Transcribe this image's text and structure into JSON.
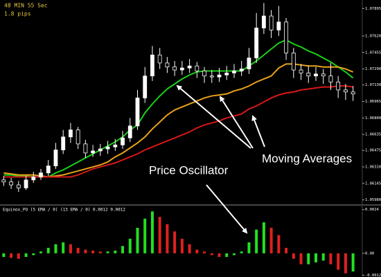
{
  "chart_data": [
    {
      "type": "candlestick",
      "info": [
        "48 MIN 55 Sec",
        "1.8 pips"
      ],
      "annotations": [
        "Price Oscillator",
        "Moving Averages"
      ],
      "ylim": [
        1.0595,
        1.0798
      ],
      "yticks": [
        1.07895,
        {
          "value": 1.0762,
          "label": "1.07620"
        },
        1.07455,
        {
          "value": 1.0729,
          "label": "1.07290"
        },
        {
          "value": 1.0713,
          "label": "1.07130"
        },
        1.06965,
        {
          "value": 1.068,
          "label": "1.06800"
        },
        1.06635,
        1.06475,
        {
          "value": 1.0631,
          "label": "1.06310"
        },
        1.06145,
        {
          "value": 1.0598,
          "label": "1.05980"
        }
      ],
      "up_color": "#ffffff",
      "down_color": "#000000",
      "outline": "#ffffff",
      "candles": [
        [
          1.0618,
          1.0622,
          1.0612,
          1.0616
        ],
        [
          1.0616,
          1.062,
          1.0609,
          1.0613
        ],
        [
          1.0613,
          1.0617,
          1.0606,
          1.061
        ],
        [
          1.061,
          1.0622,
          1.0608,
          1.0618
        ],
        [
          1.0618,
          1.0626,
          1.0615,
          1.0621
        ],
        [
          1.0621,
          1.0629,
          1.0618,
          1.0625
        ],
        [
          1.0625,
          1.0638,
          1.0622,
          1.0632
        ],
        [
          1.0632,
          1.0655,
          1.0629,
          1.0648
        ],
        [
          1.0648,
          1.0668,
          1.0644,
          1.0661
        ],
        [
          1.0661,
          1.0675,
          1.0655,
          1.0668
        ],
        [
          1.0668,
          1.0671,
          1.0649,
          1.0654
        ],
        [
          1.0654,
          1.0658,
          1.064,
          1.0645
        ],
        [
          1.0645,
          1.0653,
          1.0641,
          1.0647
        ],
        [
          1.0647,
          1.0654,
          1.0642,
          1.0649
        ],
        [
          1.0649,
          1.0657,
          1.0644,
          1.0651
        ],
        [
          1.0651,
          1.0659,
          1.0647,
          1.0653
        ],
        [
          1.0653,
          1.0667,
          1.0649,
          1.066
        ],
        [
          1.066,
          1.068,
          1.0656,
          1.0672
        ],
        [
          1.0672,
          1.0708,
          1.0668,
          1.07
        ],
        [
          1.07,
          1.0731,
          1.0695,
          1.0722
        ],
        [
          1.0722,
          1.0752,
          1.0717,
          1.0743
        ],
        [
          1.0743,
          1.075,
          1.0729,
          1.0735
        ],
        [
          1.0735,
          1.0741,
          1.0725,
          1.0731
        ],
        [
          1.0731,
          1.0737,
          1.0722,
          1.0728
        ],
        [
          1.0728,
          1.0737,
          1.0723,
          1.073
        ],
        [
          1.073,
          1.0739,
          1.0725,
          1.0732
        ],
        [
          1.0732,
          1.0736,
          1.072,
          1.0727
        ],
        [
          1.0727,
          1.0731,
          1.0715,
          1.0722
        ],
        [
          1.0722,
          1.0728,
          1.0715,
          1.0721
        ],
        [
          1.0721,
          1.073,
          1.0716,
          1.0723
        ],
        [
          1.0723,
          1.0732,
          1.0718,
          1.0725
        ],
        [
          1.0725,
          1.0734,
          1.072,
          1.0727
        ],
        [
          1.0727,
          1.0737,
          1.0722,
          1.0729
        ],
        [
          1.0729,
          1.075,
          1.0724,
          1.074
        ],
        [
          1.074,
          1.0785,
          1.0735,
          1.077
        ],
        [
          1.077,
          1.0795,
          1.0764,
          1.0782
        ],
        [
          1.0782,
          1.0788,
          1.076,
          1.0768
        ],
        [
          1.0768,
          1.0792,
          1.0762,
          1.0776
        ],
        [
          1.0776,
          1.078,
          1.0738,
          1.0745
        ],
        [
          1.0745,
          1.075,
          1.072,
          1.0728
        ],
        [
          1.0728,
          1.0734,
          1.0718,
          1.0725
        ],
        [
          1.0725,
          1.0732,
          1.0715,
          1.0722
        ],
        [
          1.0722,
          1.0731,
          1.0717,
          1.0724
        ],
        [
          1.0724,
          1.0729,
          1.0714,
          1.0722
        ],
        [
          1.0722,
          1.0735,
          1.0708,
          1.0716
        ],
        [
          1.0716,
          1.0722,
          1.07,
          1.0708
        ],
        [
          1.0708,
          1.0714,
          1.0698,
          1.0706
        ],
        [
          1.0706,
          1.0712,
          1.0697,
          1.0704
        ]
      ],
      "series": [
        {
          "color": "#19d119",
          "values": [
            1.0623,
            1.0623,
            1.0622,
            1.0622,
            1.0621,
            1.0621,
            1.0621,
            1.0625,
            1.0628,
            1.0632,
            1.0636,
            1.064,
            1.0644,
            1.0648,
            1.0652,
            1.0656,
            1.0661,
            1.0668,
            1.0673,
            1.0685,
            1.0694,
            1.0702,
            1.0709,
            1.0714,
            1.0719,
            1.0723,
            1.0726,
            1.0727,
            1.0727,
            1.0727,
            1.0727,
            1.0727,
            1.0727,
            1.0732,
            1.0737,
            1.0743,
            1.0749,
            1.0755,
            1.0758,
            1.0754,
            1.0751,
            1.0747,
            1.0744,
            1.074,
            1.0736,
            1.0731,
            1.0726,
            1.072
          ]
        },
        {
          "color": "#e8a21a",
          "values": [
            1.0625,
            1.0624,
            1.0623,
            1.0623,
            1.0623,
            1.0622,
            1.0621,
            1.0622,
            1.0623,
            1.0625,
            1.0627,
            1.0629,
            1.0631,
            1.0633,
            1.0636,
            1.0641,
            1.0645,
            1.065,
            1.0655,
            1.0661,
            1.0669,
            1.0676,
            1.0683,
            1.0688,
            1.0691,
            1.0694,
            1.0697,
            1.07,
            1.0702,
            1.0703,
            1.0704,
            1.0707,
            1.0709,
            1.0712,
            1.0716,
            1.0719,
            1.0722,
            1.073,
            1.0734,
            1.0734,
            1.0733,
            1.0732,
            1.0732,
            1.0731,
            1.0731,
            1.0731,
            1.0729,
            1.0726
          ]
        },
        {
          "color": "#d81818",
          "values": [
            1.0621,
            1.0621,
            1.0621,
            1.0621,
            1.0621,
            1.0621,
            1.0621,
            1.0621,
            1.0621,
            1.0621,
            1.0623,
            1.0626,
            1.0629,
            1.0631,
            1.0633,
            1.0635,
            1.0638,
            1.0641,
            1.0644,
            1.0648,
            1.0651,
            1.0654,
            1.0657,
            1.066,
            1.0663,
            1.0666,
            1.067,
            1.0673,
            1.0675,
            1.0677,
            1.068,
            1.0682,
            1.0684,
            1.0689,
            1.0692,
            1.0696,
            1.07,
            1.0703,
            1.0705,
            1.0706,
            1.0708,
            1.0709,
            1.071,
            1.0711,
            1.0711,
            1.0712,
            1.0712,
            1.0711
          ]
        }
      ]
    },
    {
      "type": "bar",
      "title": "Equinox_PO (5 EMA / 0) (13 EMA / 0) 0.0012 0.0012",
      "ylim": [
        -0.0013,
        0.0025
      ],
      "yticks": [
        0.0024,
        {
          "value": 0,
          "label": "0.00"
        },
        -0.0012
      ],
      "up_color": "#22e022",
      "down_color": "#e02020",
      "values": [
        -0.0002,
        -0.00025,
        -0.0003,
        -0.0002,
        -0.0001,
        0.0001,
        0.0003,
        0.0005,
        0.0006,
        0.0005,
        0.0003,
        0.0002,
        0.00015,
        0.0001,
        0.0001,
        0.00015,
        0.0004,
        0.0008,
        0.0014,
        0.0019,
        0.0023,
        0.002,
        0.0016,
        0.0012,
        0.0008,
        0.0005,
        0.0002,
        0.0001,
        -0.0001,
        -0.0002,
        -0.0002,
        -0.0001,
        0.0001,
        0.0006,
        0.0013,
        0.0017,
        0.0014,
        0.001,
        0.0003,
        -0.0003,
        -0.0006,
        -0.0006,
        -0.0005,
        -0.0004,
        -0.0006,
        -0.0009,
        -0.0011,
        -0.001
      ]
    }
  ]
}
